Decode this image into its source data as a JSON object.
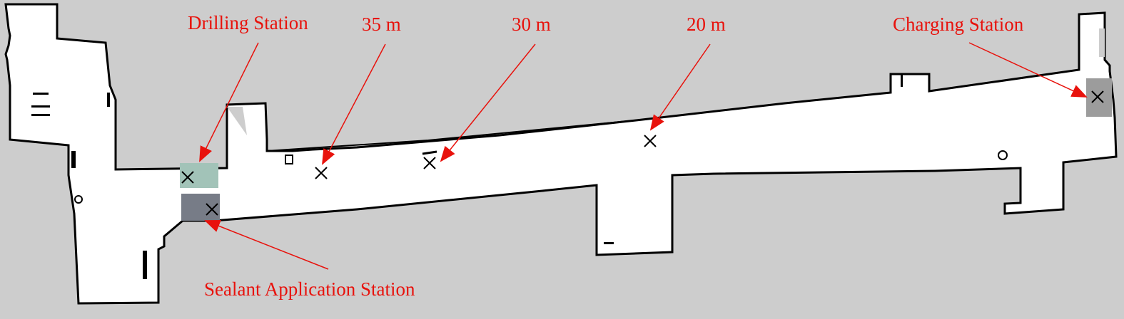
{
  "map": {
    "background_color": "#cdcdcd",
    "free_space_color": "#ffffff",
    "wall_color": "#000000",
    "annotation_color": "#e8120c",
    "marker_icon": "x-mark-icon"
  },
  "stations": {
    "drilling": {
      "label": "Drilling Station",
      "color": "#a2c3b8"
    },
    "sealant": {
      "label": "Sealant Application Station",
      "color": "#777c87"
    },
    "charging": {
      "label": "Charging Station",
      "color": "#9c9c9c"
    }
  },
  "distances": {
    "d35": {
      "label": "35 m"
    },
    "d30": {
      "label": "30 m"
    },
    "d20": {
      "label": "20 m"
    }
  }
}
